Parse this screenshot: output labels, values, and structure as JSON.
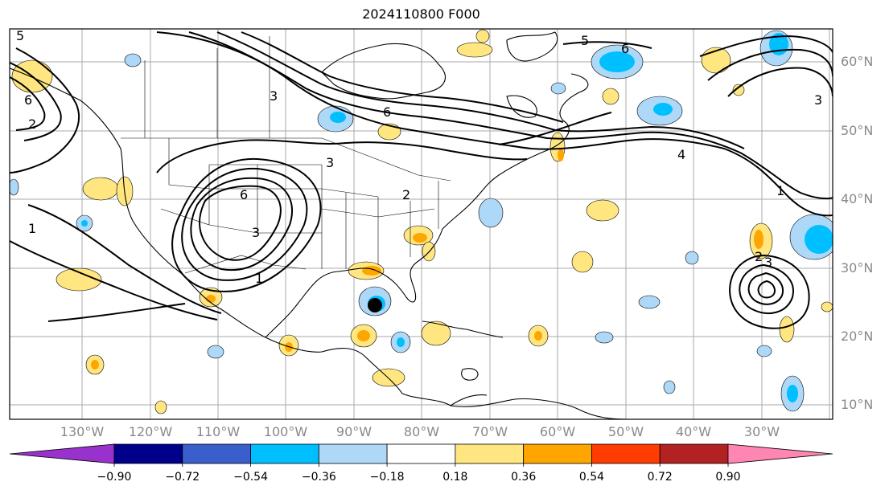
{
  "title": "2024110800 F000",
  "lat_labels": [
    "60°N",
    "50°N",
    "40°N",
    "30°N",
    "20°N",
    "10°N"
  ],
  "lon_labels": [
    "130°W",
    "120°W",
    "110°W",
    "100°W",
    "90°W",
    "80°W",
    "70°W",
    "60°W",
    "50°W",
    "40°W",
    "30°W"
  ],
  "colorbar": {
    "ticks": [
      "−0.90",
      "−0.72",
      "−0.54",
      "−0.36",
      "−0.18",
      "0.18",
      "0.36",
      "0.54",
      "0.72",
      "0.90"
    ],
    "colors": [
      "#9932cc",
      "#00008b",
      "#3a5fcd",
      "#00bfff",
      "#add8f8",
      "#ffffff",
      "#ffe680",
      "#ffa500",
      "#ff3d00",
      "#b22222",
      "#ff85b3"
    ]
  },
  "contour_labels": [
    "5",
    "6",
    "6",
    "6",
    "3",
    "3",
    "3",
    "2",
    "2",
    "6",
    "3",
    "5",
    "1",
    "4",
    "1",
    "3",
    "1",
    "2"
  ],
  "map_colors": {
    "shade_pos1": "#ffe680",
    "shade_pos2": "#ffa500",
    "shade_neg1": "#add8f8",
    "shade_neg2": "#00bfff",
    "storm_marker": "#000000"
  }
}
